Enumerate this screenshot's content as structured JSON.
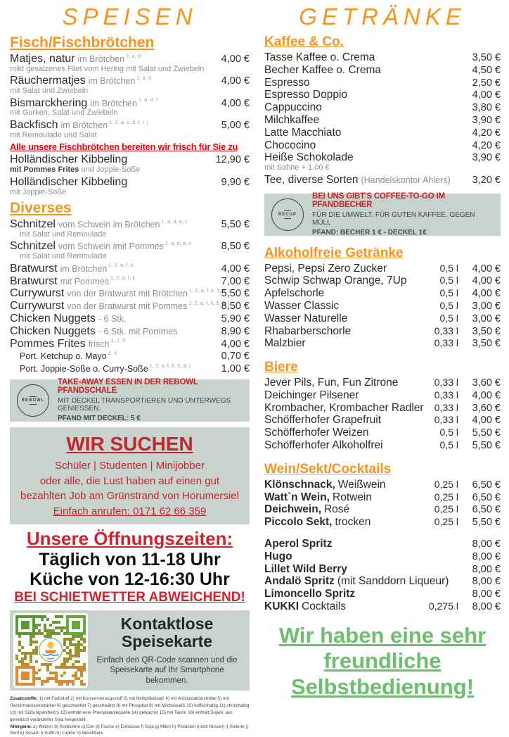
{
  "colors": {
    "accent_orange": "#f7941e",
    "notice_red": "#e30613",
    "dark_red": "#c2272d",
    "sage_green": "#c7d3cc",
    "self_service_green": "#6bbf6d"
  },
  "left": {
    "title": "Speisen",
    "sections": [
      {
        "title": "Fisch/Fischbrötchen",
        "items": [
          {
            "name": "Matjes, natur",
            "detail": "im Brötchen",
            "sup": "1, a, d",
            "price": "4,00 €",
            "sub": "mild gesalzenes Filet vom Hering mit Salat und Zwiebeln"
          },
          {
            "name": "Räuchermatjes",
            "detail": "im Brötchen",
            "sup": "1, a, d",
            "price": "4,00 €",
            "sub": "mit Salat und Zwiebeln"
          },
          {
            "name": "Bismarckhering",
            "detail": "im Brötchen",
            "sup": "1, a, d, f",
            "price": "4,00 €",
            "sub": "mit Gurken, Salat und Zwiebeln"
          },
          {
            "name": "Backfisch",
            "detail": "im Brötchen",
            "sup": "1, 2, a, c, d, f, i, j",
            "price": "5,00 €",
            "sub": "mit Remoulade und Salat"
          },
          {
            "notice": "Alle unsere Fischbrötchen bereiten wir frisch für Sie zu"
          },
          {
            "name": "Holländischer Kibbeling",
            "price": "12,90 €",
            "sub_bold": "mit Pommes Frites",
            "sub": " und Joppie-Soße"
          },
          {
            "name": "Holländischer Kibbeling",
            "price": "9,90 €",
            "sub": "mit Joppie-Soße"
          }
        ]
      },
      {
        "title": "Diverses",
        "items": [
          {
            "name": "Schnitzel",
            "detail": "vom Schwein im Brötchen",
            "sup": "1, a, d, a, c",
            "price": "5,50 €",
            "sub": "mit Salat und Remoulade",
            "sub_indent": true
          },
          {
            "name": "Schnitzel",
            "detail": "vom Schwein imit Pommes",
            "sup": "1, a, d, a, c",
            "price": "8,50 €",
            "sub": "mit Salat und Remoulade",
            "sub_indent": true
          },
          {
            "name": "Bratwurst",
            "detail": "im Brötchen",
            "sup": "1, 2, a, f, k",
            "price": "4,00 €"
          },
          {
            "name": "Bratwurst",
            "detail": "mit Pommes",
            "sup": "1, 2, a, f, k",
            "price": "7,00 €"
          },
          {
            "name": "Currywurst",
            "detail": "von der Bratwurst mit Brötchen",
            "sup": "1, 2, a, f, k, 5, 8, j",
            "price": "5,50 €"
          },
          {
            "name": "Currywurst",
            "detail": "von der Bratwurst mit Pommes",
            "sup": "1, 2, a, f, k, 5, 8, j",
            "price": "8,50 €"
          },
          {
            "name": "Chicken Nuggets",
            "detail": "- 6 Stk.",
            "price": "5,90 €"
          },
          {
            "name": "Chicken Nuggets",
            "detail": "- 6 Stk. mit Pommes",
            "price": "8,90 €"
          },
          {
            "name": "Pommes Frites",
            "detail": "frisch",
            "sup": "1, 2, 5",
            "price": "4,00 €"
          },
          {
            "name": "Port. Ketchup o. Mayo",
            "small": true,
            "sup": "1, 4",
            "price": "0,70 €"
          },
          {
            "name": "Port. Joppie-Soße o. Curry-Soße",
            "small": true,
            "sup": "1, 2, a, f, k, 5, 8, j",
            "price": "1,00 €"
          }
        ]
      }
    ],
    "rebowl": {
      "logo": "REBOWL",
      "title": "TAKE-AWAY ESSEN IN DER REBOWL PFANDSCHALE",
      "line1": "MIT DECKEL TRANSPORTIEREN UND UNTERWEGS GENIESSEN.",
      "line2": "PFAND MIT DECKEL: 5 €"
    },
    "hiring": {
      "title": "WIR SUCHEN",
      "lines": [
        "Schüler | Studenten | Minijobber",
        "oder alle, die Lust haben auf einen gut",
        "bezahlten Job am Grünstrand von Horumersiel"
      ],
      "phone": "Einfach anrufen: 0171 62 66 359"
    },
    "hours": {
      "title": "Unsere Öffnungszeiten:",
      "line1": "Täglich von 11-18 Uhr",
      "line2": "Küche von 12-16:30 Uhr",
      "warning": "BEI SCHIETWETTER ABWEICHEND!"
    },
    "qr": {
      "title1": "Kontaktlose",
      "title2": "Speisekarte",
      "text": "Einfach den QR-Code scannen und die Speisekarte auf Ihr Smartphone bekommen."
    },
    "footnotes": {
      "zusatz_label": "Zusatzstoffe:",
      "zusatz": " 1) mit Farbstoff  2) mit Konservierungsstoff  3) mit Nitritpökelsalz 4) mit Antioxidationsmittel 5) mit Geschmacksverstärker  6) geschwefelt 7) geschwärzt 8) mit Phosphat 9) mit Milcheiweiß  10) koffeinhaltig  11) chininhaltig  12) mit Süßungsmittel(n) 13) enthält eine Phenylalaninquelle 14) gewachst 15) mit Taurin  16) enthält Sojaöl, aus genetisch veränderter Soja hergestellt",
      "allergen_label": "Allergene:",
      "allergen": " a) Weizen b) Krebstiere c) Eier d) Fische e) Erdnüsse  f) Soja g) Milch h) Pistazien (nicht Nüsse!) i) Sellerie j) Senf k) Sesam l) Sulfit m) Lupine n) Weichtiere"
    }
  },
  "right": {
    "title": "Getränke",
    "sections": [
      {
        "title": "Kaffee & Co.",
        "items": [
          {
            "name": "Tasse Kaffee o. Crema",
            "price": "3,50 €"
          },
          {
            "name": "Becher Kaffee o. Crema",
            "price": "4,50 €"
          },
          {
            "name": "Espresso",
            "price": "2,50 €"
          },
          {
            "name": "Espresso Doppio",
            "price": "4,00 €"
          },
          {
            "name": "Cappuccino",
            "price": "3,80 €"
          },
          {
            "name": "Milchkaffee",
            "price": "3,90 €"
          },
          {
            "name": "Latte Macchiato",
            "price": "4,20 €"
          },
          {
            "name": "Chococino",
            "price": "4,20 €"
          },
          {
            "name": "Heiße Schokolade",
            "price": "3,90 €",
            "sub": "mit Sahne + 1,00 €"
          },
          {
            "name": "Tee, diverse Sorten",
            "detail": "(Handelskontor Ahlers)",
            "price": "3,20 €"
          }
        ]
      },
      {
        "title": "Alkoholfreie Getränke",
        "gap": true,
        "items": [
          {
            "name": "Pepsi, Pepsi Zero Zucker",
            "vol": "0,5 l",
            "price": "4,00 €"
          },
          {
            "name": "Schwip Schwap Orange, 7Up",
            "vol": "0,5 l",
            "price": "4,00 €"
          },
          {
            "name": "Apfelschorle",
            "vol": "0,5 l",
            "price": "4,00 €"
          },
          {
            "name": "Wasser Classic",
            "vol": "0,5 l",
            "price": "3,00 €"
          },
          {
            "name": "Wasser Naturelle",
            "vol": "0,5 l",
            "price": "3,00 €"
          },
          {
            "name": "Rhabarberschorle",
            "vol": "0,33 l",
            "price": "3,50 €"
          },
          {
            "name": "Malzbier",
            "vol": "0,33 l",
            "price": "3,50 €"
          }
        ]
      },
      {
        "title": "Biere",
        "gap": true,
        "items": [
          {
            "name": "Jever Pils, Fun, Fun Zitrone",
            "vol": "0,33 l",
            "price": "3,60 €"
          },
          {
            "name": "Deichinger Pilsener",
            "vol": "0,33 l",
            "price": "4,00 €"
          },
          {
            "name": "Krombacher, Krombacher Radler",
            "vol": "0,33 l",
            "price": "3,60 €"
          },
          {
            "name": "Schöfferhofer Grapefruit",
            "vol": "0,33 l",
            "price": "4,00 €"
          },
          {
            "name": "Schöfferhofer Weizen",
            "vol": "0,5 l",
            "price": "5,50 €"
          },
          {
            "name": "Schöfferhofer Alkoholfrei",
            "vol": "0,5 l",
            "price": "5,50 €"
          }
        ]
      },
      {
        "title": "Wein/Sekt/Cocktails",
        "gap": true,
        "items": [
          {
            "name": "Klönschnack,",
            "name_bold": true,
            "detail_dark": "Weißwein",
            "vol": "0,25 l",
            "price": "6,50 €"
          },
          {
            "name": "Watt`n Wein,",
            "name_bold": true,
            "detail_dark": "Rotwein",
            "vol": "0,25 l",
            "price": "6,50 €"
          },
          {
            "name": "Deichwein,",
            "name_bold": true,
            "detail_dark": "Rosé",
            "vol": "0,25 l",
            "price": "6,50 €"
          },
          {
            "name": "Piccolo Sekt,",
            "name_bold": true,
            "detail_dark": "trocken",
            "vol": "0,25 l",
            "price": "5,50 €"
          }
        ]
      },
      {
        "gap": true,
        "items": [
          {
            "name": "Aperol Spritz",
            "name_bold": true,
            "price": "8,00 €"
          },
          {
            "name": "Hugo",
            "name_bold": true,
            "price": "8,00 €"
          },
          {
            "name": "Lillet Wild Berry",
            "name_bold": true,
            "price": "8,00 €"
          },
          {
            "name": "Andalö Spritz",
            "name_bold": true,
            "detail_dark": "(mit Sanddorn Liqueur)",
            "price": "8,00 €"
          },
          {
            "name": "Limoncello Spritz",
            "name_bold": true,
            "price": "8,00 €"
          },
          {
            "name": "KUKKI",
            "name_bold": true,
            "detail_dark": "Cocktails",
            "vol": "0,275 l",
            "price": "8,00 €"
          }
        ]
      }
    ],
    "recup": {
      "logo": "RECUP",
      "title": "BEI UNS GIBT'S COFFEE-TO-GO IM PFANDBECHER",
      "line1": "FÜR DIE UMWELT. FÜR GUTEN KAFFEE. GEGEN MÜLL",
      "line2": "PFAND: BECHER 1 € - DECKEL 1€"
    },
    "selfservice": {
      "lines": [
        "Wir haben eine sehr",
        "freundliche",
        "Selbstbedienung!"
      ]
    }
  }
}
